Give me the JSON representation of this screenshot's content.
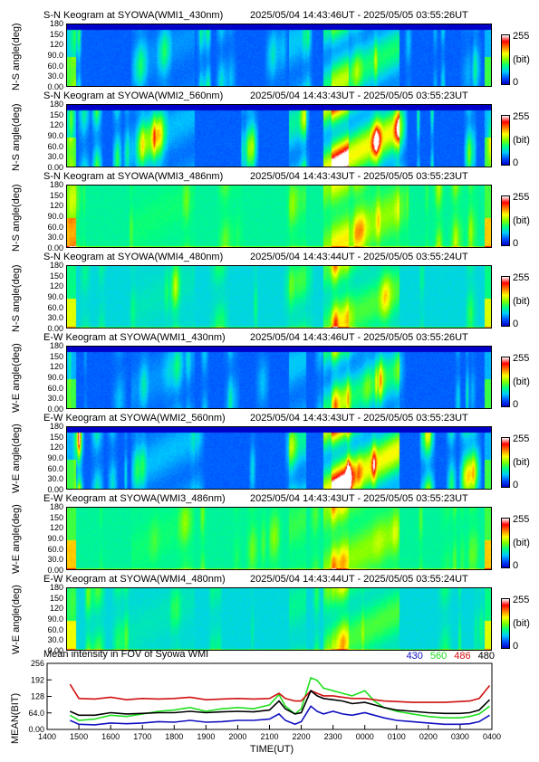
{
  "keograms": [
    {
      "title_left": "S-N Keogram at SYOWA(WMI1_430nm)",
      "title_right": "2025/05/04 14:43:46UT - 2025/05/05 03:55:26UT",
      "ylabel": "N-S angle(deg)",
      "bright": 0.55,
      "base": "blue"
    },
    {
      "title_left": "S-N Keogram at SYOWA(WMI2_560nm)",
      "title_right": "2025/05/04 14:43:43UT - 2025/05/05 03:55:23UT",
      "ylabel": "N-S angle(deg)",
      "bright": 1.0,
      "base": "blue"
    },
    {
      "title_left": "S-N Keogram at SYOWA(WMI3_486nm)",
      "title_right": "2025/05/04 14:43:43UT - 2025/05/05 03:55:23UT",
      "ylabel": "N-S angle(deg)",
      "bright": 0.35,
      "base": "green"
    },
    {
      "title_left": "S-N Keogram at SYOWA(WMI4_480nm)",
      "title_right": "2025/05/04 14:43:44UT - 2025/05/05 03:55:24UT",
      "ylabel": "N-S angle(deg)",
      "bright": 0.35,
      "base": "teal"
    },
    {
      "title_left": "E-W Keogram at SYOWA(WMI1_430nm)",
      "title_right": "2025/05/04 14:43:46UT - 2025/05/05 03:55:26UT",
      "ylabel": "W-E angle(deg)",
      "bright": 0.55,
      "base": "blue"
    },
    {
      "title_left": "E-W Keogram at SYOWA(WMI2_560nm)",
      "title_right": "2025/05/04 14:43:43UT - 2025/05/05 03:55:23UT",
      "ylabel": "W-E angle(deg)",
      "bright": 1.0,
      "base": "blue"
    },
    {
      "title_left": "E-W Keogram at SYOWA(WMI3_486nm)",
      "title_right": "2025/05/04 14:43:43UT - 2025/05/05 03:55:23UT",
      "ylabel": "W-E angle(deg)",
      "bright": 0.35,
      "base": "green"
    },
    {
      "title_left": "E-W Keogram at SYOWA(WMI4_480nm)",
      "title_right": "2025/05/04 14:43:44UT - 2025/05/05 03:55:24UT",
      "ylabel": "W-E angle(deg)",
      "bright": 0.35,
      "base": "teal"
    }
  ],
  "angle_ticks": [
    "180",
    "150",
    "120",
    "90.0",
    "60.0",
    "30.0",
    "0.00"
  ],
  "colorbar": {
    "max": "255",
    "unit": "(bit)",
    "min": "0"
  },
  "chart_data": {
    "type": "line",
    "title": "Mean intensity in FOV of Syowa WMI",
    "ylabel": "MEAN(BIT)",
    "xlabel": "TIME(UT)",
    "ylim": [
      0,
      256
    ],
    "yticks": [
      "256",
      "192",
      "128",
      "64.0",
      "0.00"
    ],
    "ytick_values": [
      256,
      192,
      128,
      64,
      0
    ],
    "xticks": [
      "1400",
      "1500",
      "1600",
      "1700",
      "1800",
      "1900",
      "2000",
      "2100",
      "2200",
      "2300",
      "0000",
      "0100",
      "0200",
      "0300",
      "0400"
    ],
    "x_hours": [
      14.72,
      15.0,
      15.5,
      16.0,
      16.5,
      17.0,
      17.5,
      18.0,
      18.5,
      19.0,
      19.5,
      20.0,
      20.5,
      21.0,
      21.3,
      21.5,
      21.8,
      22.0,
      22.3,
      22.5,
      22.7,
      23.0,
      23.3,
      23.6,
      24.0,
      24.3,
      24.6,
      25.0,
      25.5,
      26.0,
      26.5,
      27.0,
      27.3,
      27.6,
      27.93
    ],
    "series": [
      {
        "name": "430",
        "color": "#1010c0",
        "values": [
          35,
          20,
          18,
          25,
          22,
          25,
          30,
          28,
          35,
          28,
          30,
          35,
          35,
          40,
          60,
          35,
          20,
          30,
          90,
          70,
          60,
          70,
          60,
          55,
          65,
          55,
          45,
          35,
          30,
          25,
          20,
          20,
          22,
          30,
          55
        ]
      },
      {
        "name": "560",
        "color": "#20e020",
        "values": [
          55,
          35,
          40,
          55,
          50,
          60,
          70,
          75,
          85,
          70,
          80,
          85,
          80,
          95,
          135,
          90,
          60,
          80,
          200,
          190,
          160,
          150,
          140,
          130,
          150,
          110,
          85,
          70,
          60,
          50,
          45,
          45,
          50,
          60,
          90
        ]
      },
      {
        "name": "486",
        "color": "#d01010",
        "values": [
          175,
          120,
          118,
          125,
          115,
          120,
          118,
          120,
          125,
          115,
          118,
          120,
          118,
          120,
          140,
          120,
          110,
          110,
          150,
          140,
          130,
          130,
          125,
          120,
          120,
          115,
          110,
          108,
          105,
          105,
          105,
          108,
          110,
          120,
          170
        ]
      },
      {
        "name": "480",
        "color": "#000000",
        "values": [
          70,
          55,
          55,
          65,
          60,
          62,
          65,
          65,
          70,
          65,
          68,
          70,
          68,
          75,
          110,
          80,
          60,
          65,
          150,
          130,
          120,
          115,
          110,
          100,
          105,
          95,
          85,
          75,
          70,
          65,
          62,
          62,
          65,
          75,
          115
        ]
      }
    ]
  }
}
